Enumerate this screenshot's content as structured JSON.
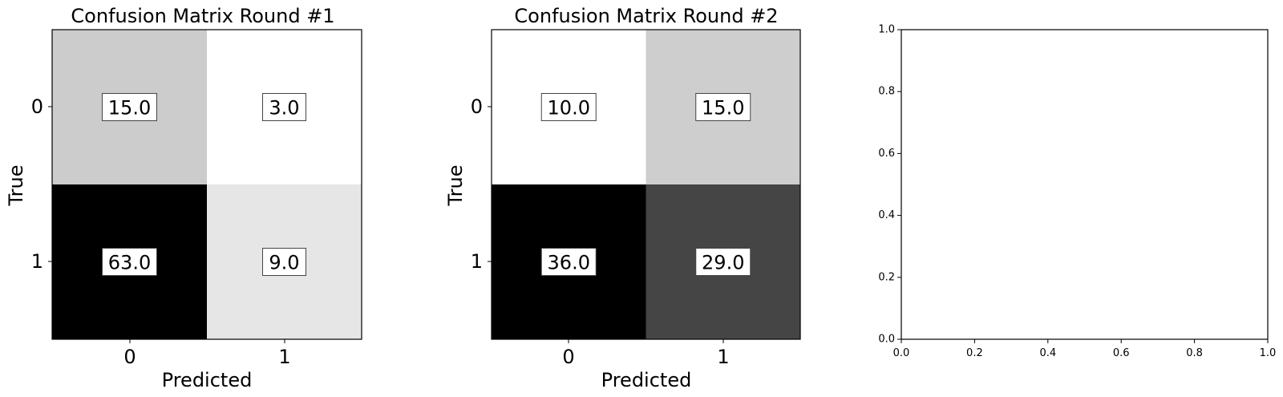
{
  "chart_data": [
    {
      "type": "heatmap",
      "title": "Confusion Matrix Round #1",
      "xlabel": "Predicted",
      "ylabel": "True",
      "x_categories": [
        "0",
        "1"
      ],
      "y_categories": [
        "0",
        "1"
      ],
      "matrix": [
        [
          15.0,
          3.0
        ],
        [
          63.0,
          9.0
        ]
      ],
      "cell_labels": [
        [
          "15.0",
          "3.0"
        ],
        [
          "63.0",
          "9.0"
        ]
      ],
      "colormap": "gray_r",
      "grid": false
    },
    {
      "type": "heatmap",
      "title": "Confusion Matrix Round #2",
      "xlabel": "Predicted",
      "ylabel": "True",
      "x_categories": [
        "0",
        "1"
      ],
      "y_categories": [
        "0",
        "1"
      ],
      "matrix": [
        [
          10.0,
          15.0
        ],
        [
          36.0,
          29.0
        ]
      ],
      "cell_labels": [
        [
          "10.0",
          "15.0"
        ],
        [
          "36.0",
          "29.0"
        ]
      ],
      "colormap": "gray_r",
      "grid": false
    },
    {
      "type": "scatter",
      "title": "",
      "xlabel": "",
      "ylabel": "",
      "xlim": [
        0.0,
        1.0
      ],
      "ylim": [
        0.0,
        1.0
      ],
      "x_ticks": [
        "0.0",
        "0.2",
        "0.4",
        "0.6",
        "0.8",
        "1.0"
      ],
      "y_ticks": [
        "0.0",
        "0.2",
        "0.4",
        "0.6",
        "0.8",
        "1.0"
      ],
      "series": [],
      "grid": false
    }
  ]
}
